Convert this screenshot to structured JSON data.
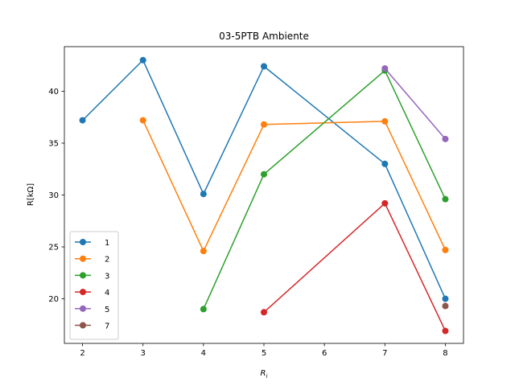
{
  "chart_data": {
    "type": "line",
    "title": "03-5PTB Ambiente",
    "xlabel_main": "R",
    "xlabel_sub": "i",
    "ylabel": "R[kΩ]",
    "xlim": [
      1.7,
      8.3
    ],
    "ylim": [
      15.7,
      44.3
    ],
    "xticks": [
      2,
      3,
      4,
      5,
      6,
      7,
      8
    ],
    "yticks": [
      20,
      25,
      30,
      35,
      40
    ],
    "grid": false,
    "legend_position": "lower-left",
    "series": [
      {
        "name": "1",
        "color": "#1f77b4",
        "x": [
          2,
          3,
          4,
          5,
          7,
          8
        ],
        "y": [
          37.2,
          43.0,
          30.1,
          42.4,
          33.0,
          20.0
        ]
      },
      {
        "name": "2",
        "color": "#ff7f0e",
        "x": [
          3,
          4,
          5,
          7,
          8
        ],
        "y": [
          37.2,
          24.6,
          36.8,
          37.1,
          24.7
        ]
      },
      {
        "name": "3",
        "color": "#2ca02c",
        "x": [
          4,
          5,
          7,
          8
        ],
        "y": [
          19.0,
          32.0,
          42.0,
          29.6
        ]
      },
      {
        "name": "4",
        "color": "#d62728",
        "x": [
          5,
          7,
          8
        ],
        "y": [
          18.7,
          29.2,
          16.9
        ]
      },
      {
        "name": "5",
        "color": "#9467bd",
        "x": [
          7,
          8
        ],
        "y": [
          42.2,
          35.4
        ]
      },
      {
        "name": "7",
        "color": "#8c564b",
        "x": [
          8
        ],
        "y": [
          19.3
        ]
      }
    ]
  }
}
